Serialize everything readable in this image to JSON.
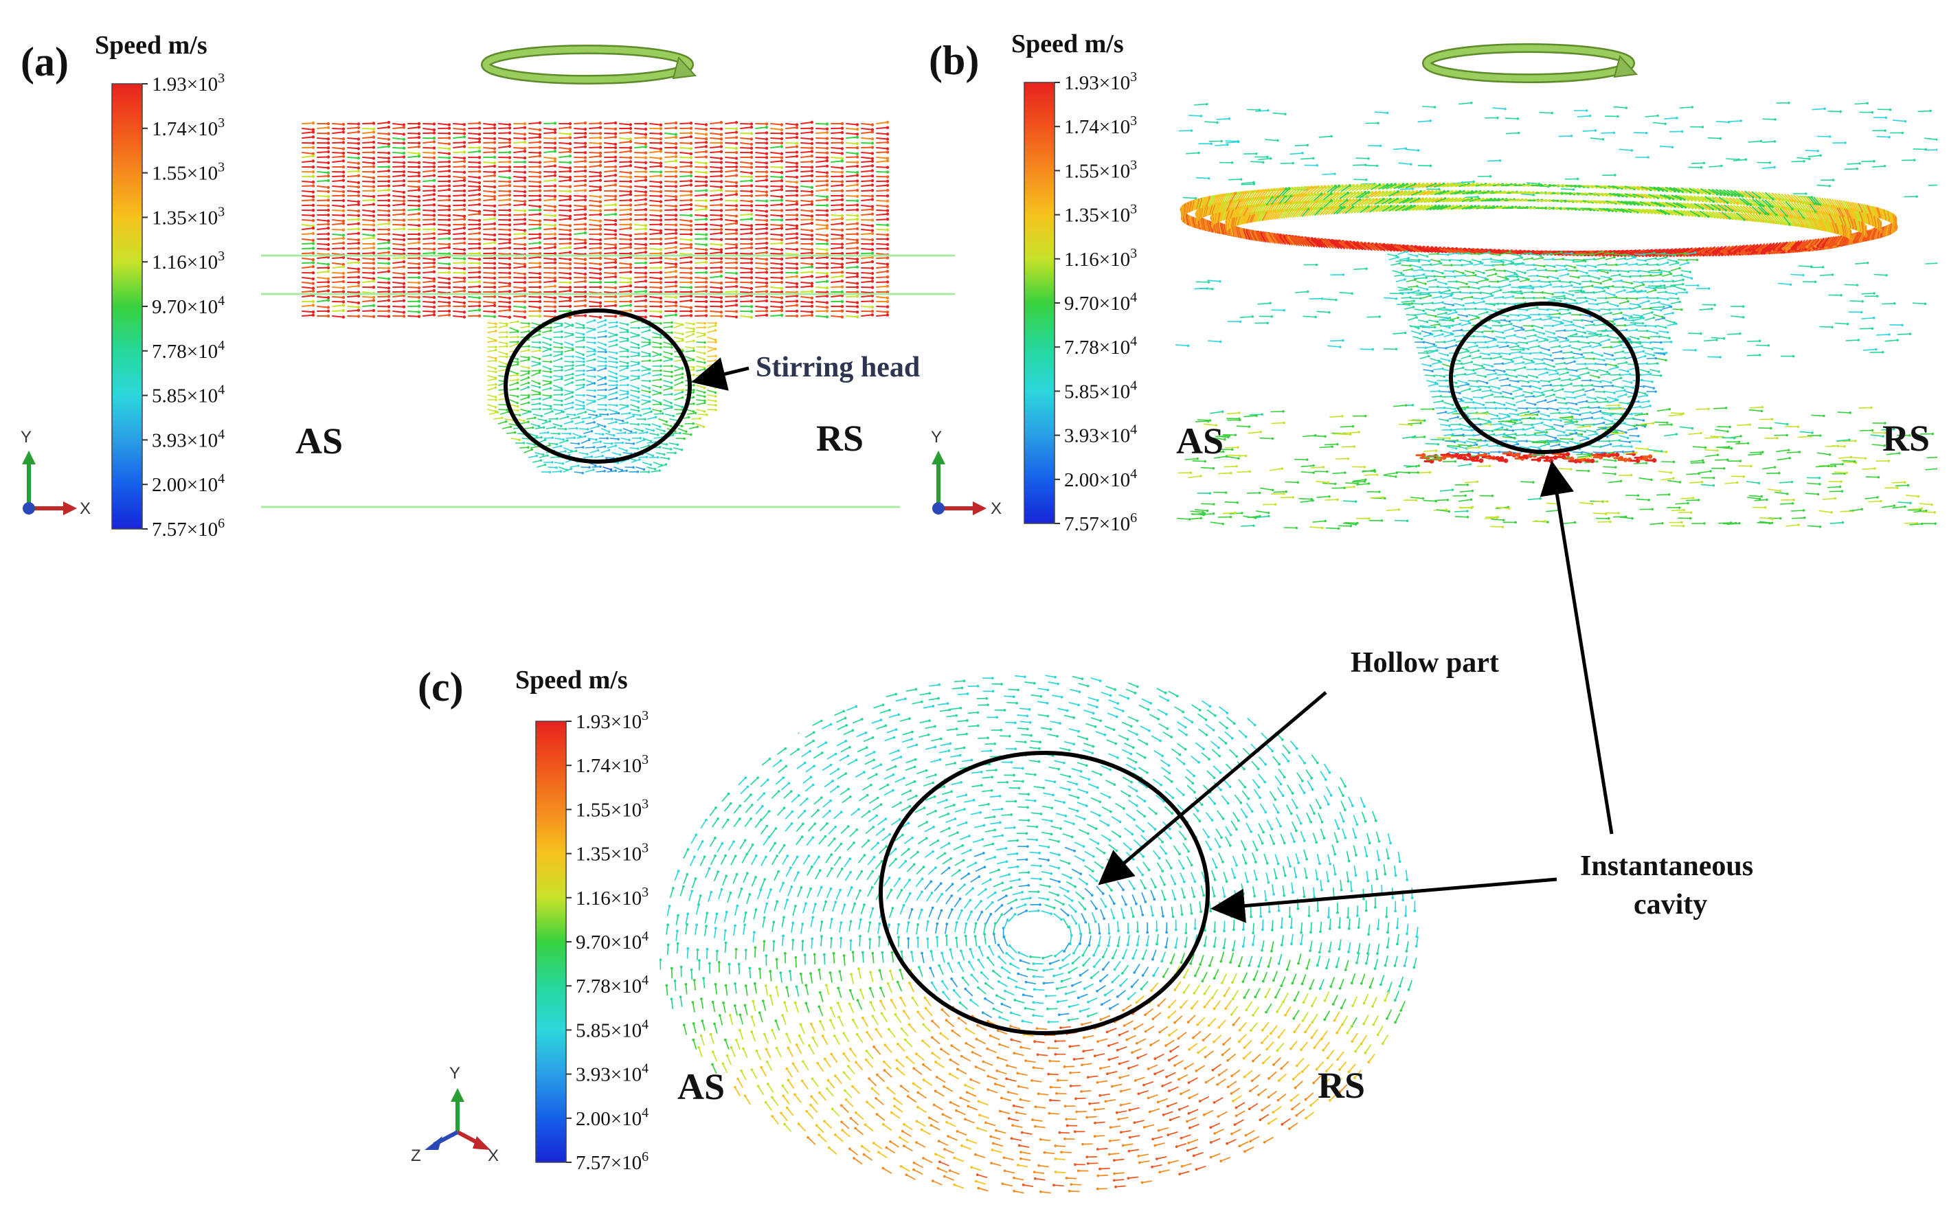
{
  "colors": {
    "scale": [
      "#e8231e",
      "#f0551c",
      "#f58a1e",
      "#f6c21d",
      "#c8e22a",
      "#38d13d",
      "#27d79a",
      "#2dd6dc",
      "#2a9ee6",
      "#1560e8",
      "#1725d8"
    ],
    "text": "#111111",
    "annotation_blue": "#2d3550",
    "rotation_arrow": "#8bb852",
    "outline": "#000000"
  },
  "legend": {
    "title": "Speed m/s",
    "ticks": [
      {
        "mant": "1.93×10",
        "exp": "3"
      },
      {
        "mant": "1.74×10",
        "exp": "3"
      },
      {
        "mant": "1.55×10",
        "exp": "3"
      },
      {
        "mant": "1.35×10",
        "exp": "3"
      },
      {
        "mant": "1.16×10",
        "exp": "3"
      },
      {
        "mant": "9.70×10",
        "exp": "4"
      },
      {
        "mant": "7.78×10",
        "exp": "4"
      },
      {
        "mant": "5.85×10",
        "exp": "4"
      },
      {
        "mant": "3.93×10",
        "exp": "4"
      },
      {
        "mant": "2.00×10",
        "exp": "4"
      },
      {
        "mant": "7.57×10",
        "exp": "6"
      }
    ]
  },
  "axes": {
    "x": "X",
    "y": "Y",
    "z": "Z"
  },
  "panels": {
    "a": {
      "letter": "(a)",
      "left": "AS",
      "right": "RS",
      "annotation": "Stirring head"
    },
    "b": {
      "letter": "(b)",
      "left": "AS",
      "right": "RS"
    },
    "c": {
      "letter": "(c)",
      "left": "AS",
      "right": "RS",
      "annotation_hollow": "Hollow part"
    }
  },
  "annotation_cavity": [
    "Instantaneous",
    "cavity"
  ]
}
